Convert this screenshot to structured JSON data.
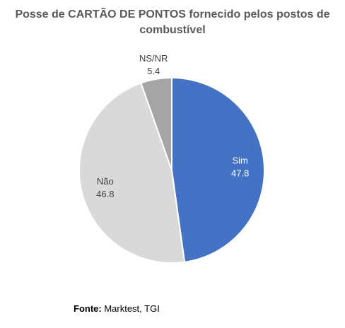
{
  "chart_data": {
    "type": "pie",
    "title_lines": [
      "Posse de CARTÃO DE PONTOS fornecido pelos postos de",
      "combustível"
    ],
    "slices": [
      {
        "label": "Sim",
        "value": 47.8,
        "value_text": "47.8",
        "color": "#4472C4",
        "label_color": "#ffffff"
      },
      {
        "label": "Não",
        "value": 46.8,
        "value_text": "46.8",
        "color": "#D9D9D9",
        "label_color": "#404040"
      },
      {
        "label": "NS/NR",
        "value": 5.4,
        "value_text": "5.4",
        "color": "#A5A5A5",
        "label_color": "#404040"
      }
    ],
    "start": "12 o'clock",
    "direction": "clockwise",
    "labels_outside": [
      "NS/NR"
    ]
  },
  "source": {
    "lead": "Fonte:",
    "text": " Marktest, TGI"
  }
}
